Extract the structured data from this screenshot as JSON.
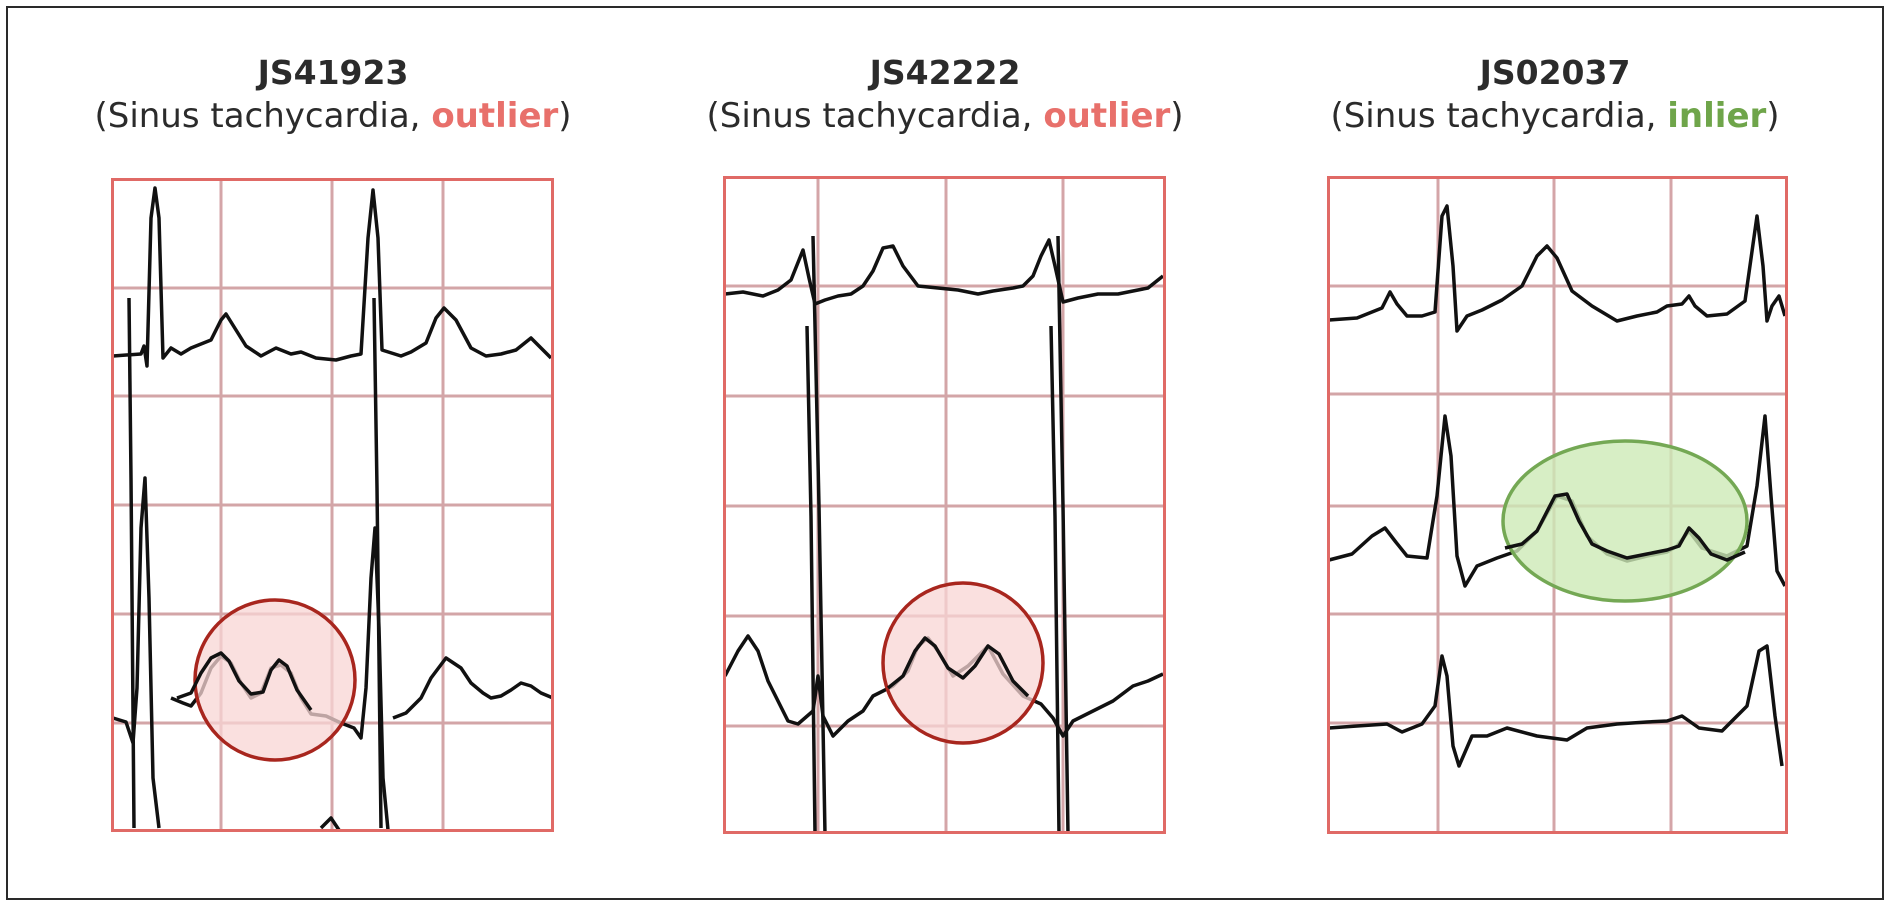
{
  "panels": [
    {
      "id": "JS41923",
      "sub_prefix": "(Sinus tachycardia, ",
      "status": "outlier",
      "sub_suffix": ")",
      "status_color": "#e8706b"
    },
    {
      "id": "JS42222",
      "sub_prefix": "(Sinus tachycardia, ",
      "status": "outlier",
      "sub_suffix": ")",
      "status_color": "#e8706b"
    },
    {
      "id": "JS02037",
      "sub_prefix": "(Sinus tachycardia, ",
      "status": "inlier",
      "sub_suffix": ")",
      "status_color": "#6fa54a"
    }
  ],
  "colors": {
    "grid": "#e06a66",
    "grid_inner": "#c98f92",
    "trace": "#111111",
    "outlier_fill": "#f8d6d4",
    "outlier_stroke": "#a8261e",
    "inlier_fill": "#cdeab6",
    "inlier_stroke": "#74a854"
  }
}
